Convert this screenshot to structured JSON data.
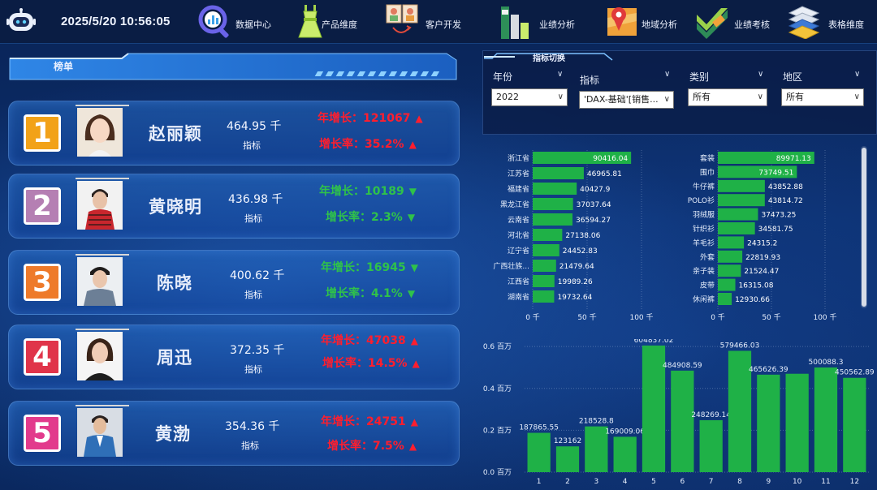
{
  "header": {
    "datetime": "2025/5/20 10:56:05",
    "nav": [
      {
        "label": "数据中心",
        "icon": "search-chart-icon"
      },
      {
        "label": "产品维度",
        "icon": "dress-icon"
      },
      {
        "label": "客户开发",
        "icon": "customers-icon"
      },
      {
        "label": "业绩分析",
        "icon": "bar-chart-icon"
      },
      {
        "label": "地域分析",
        "icon": "map-pin-icon"
      },
      {
        "label": "业绩考核",
        "icon": "check-mark-icon"
      },
      {
        "label": "表格维度",
        "icon": "stacked-layers-icon"
      }
    ]
  },
  "ranking": {
    "title": "榜单",
    "items": [
      {
        "rank": "1",
        "name": "赵丽颖",
        "value": "464.95 千",
        "metric": "指标",
        "growth": "年增长：121067",
        "rate": "增长率：35.2%",
        "trend": "up",
        "badge_color": "#f2a218",
        "photo": "photo-woman-1"
      },
      {
        "rank": "2",
        "name": "黄晓明",
        "value": "436.98 千",
        "metric": "指标",
        "growth": "年增长：10189",
        "rate": "增长率：2.3%",
        "trend": "down",
        "badge_color": "#b57fb3",
        "photo": "photo-man-1"
      },
      {
        "rank": "3",
        "name": "陈晓",
        "value": "400.62 千",
        "metric": "指标",
        "growth": "年增长：16945",
        "rate": "增长率：4.1%",
        "trend": "down",
        "badge_color": "#ee7a2a",
        "photo": "photo-man-2"
      },
      {
        "rank": "4",
        "name": "周迅",
        "value": "372.35 千",
        "metric": "指标",
        "growth": "年增长：47038",
        "rate": "增长率：14.5%",
        "trend": "up",
        "badge_color": "#e0344a",
        "photo": "photo-woman-2"
      },
      {
        "rank": "5",
        "name": "黄渤",
        "value": "354.36 千",
        "metric": "指标",
        "growth": "年增长：24751",
        "rate": "增长率：7.5%",
        "trend": "up",
        "badge_color": "#e23a8c",
        "photo": "photo-man-3"
      }
    ]
  },
  "filters": {
    "title": "指标切换",
    "fields": [
      {
        "label": "年份",
        "value": "2022"
      },
      {
        "label": "指标",
        "value": "'DAX-基础'[销售..."
      },
      {
        "label": "类别",
        "value": "所有"
      },
      {
        "label": "地区",
        "value": "所有"
      }
    ]
  },
  "colors": {
    "bar": "#1fb147",
    "up": "#ff1e2e",
    "down": "#2fc24a"
  },
  "chart_data": [
    {
      "type": "bar",
      "orientation": "horizontal",
      "categories": [
        "浙江省",
        "江苏省",
        "福建省",
        "黑龙江省",
        "云南省",
        "河北省",
        "辽宁省",
        "广西壮族...",
        "江西省",
        "湖南省"
      ],
      "values": [
        90416.04,
        46965.81,
        40427.9,
        37037.64,
        36594.27,
        27138.06,
        24452.83,
        21479.64,
        19989.26,
        19732.64
      ],
      "value_labels": [
        "90416.04",
        "46965.81",
        "40427.9",
        "37037.64",
        "36594.27",
        "27138.06",
        "24452.83",
        "21479.64",
        "19989.26",
        "19732.64"
      ],
      "xlim": [
        0,
        100000
      ],
      "xticks": [
        0,
        50000,
        100000
      ],
      "xtick_labels": [
        "0 千",
        "50 千",
        "100 千"
      ]
    },
    {
      "type": "bar",
      "orientation": "horizontal",
      "categories": [
        "套装",
        "围巾",
        "牛仔裤",
        "POLO衫",
        "羽绒服",
        "针织衫",
        "羊毛衫",
        "外套",
        "亲子装",
        "皮带",
        "休闲裤"
      ],
      "values": [
        89971.13,
        73749.51,
        43852.88,
        43814.72,
        37473.25,
        34581.75,
        24315.2,
        22819.93,
        21524.47,
        16315.08,
        12930.66
      ],
      "value_labels": [
        "89971.13",
        "73749.51",
        "43852.88",
        "43814.72",
        "37473.25",
        "34581.75",
        "24315.2",
        "22819.93",
        "21524.47",
        "16315.08",
        "12930.66"
      ],
      "xlim": [
        0,
        100000
      ],
      "xticks": [
        0,
        50000,
        100000
      ],
      "xtick_labels": [
        "0 千",
        "50 千",
        "100 千"
      ]
    },
    {
      "type": "bar",
      "orientation": "vertical",
      "categories": [
        "1",
        "2",
        "3",
        "4",
        "5",
        "6",
        "7",
        "8",
        "9",
        "10",
        "11",
        "12"
      ],
      "values": [
        187865.55,
        123162,
        218528.8,
        169009.06,
        604837.02,
        484908.59,
        248269.14,
        579466.03,
        465626.39,
        470000,
        500088.3,
        450562.89
      ],
      "value_labels": [
        "187865.55",
        "123162",
        "218528.8",
        "169009.06",
        "604837.02",
        "484908.59",
        "248269.14",
        "579466.03",
        "465626.39",
        "",
        "500088.3",
        "450562.89"
      ],
      "ylim": [
        0,
        620000
      ],
      "yticks": [
        0,
        200000,
        400000,
        600000
      ],
      "ytick_labels": [
        "0.0 百万",
        "0.2 百万",
        "0.4 百万",
        "0.6 百万"
      ]
    }
  ]
}
